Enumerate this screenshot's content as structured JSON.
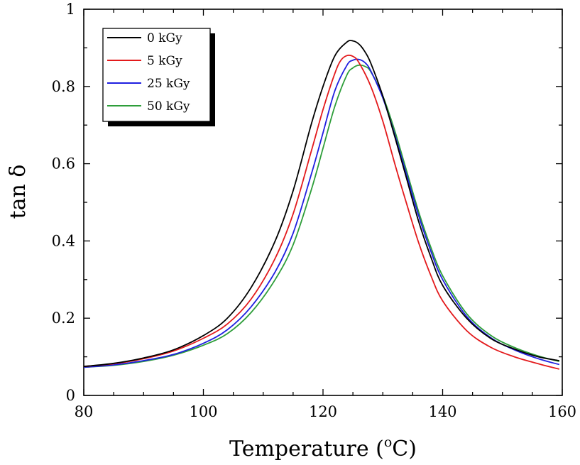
{
  "chart_data": {
    "type": "line",
    "xlabel": "Temperature (",
    "xlabel_sup": "o",
    "xlabel_tail": "C)",
    "ylabel": "tan δ",
    "xlim": [
      80,
      160
    ],
    "ylim": [
      0,
      1
    ],
    "x_ticks": [
      80,
      100,
      120,
      140,
      160
    ],
    "x_tick_labels": [
      "80",
      "100",
      "120",
      "140",
      "160"
    ],
    "y_ticks": [
      0,
      0.2,
      0.4,
      0.6,
      0.8,
      1
    ],
    "y_tick_labels": [
      "0",
      "0.2",
      "0.4",
      "0.6",
      "0.8",
      "1"
    ],
    "grid": false,
    "legend_position": "top-left",
    "series": [
      {
        "name": "0 kGy",
        "color": "#000000",
        "x": [
          80,
          85,
          90,
          95,
          100,
          104,
          108,
          112,
          115,
          118,
          120,
          122,
          124,
          125,
          126,
          127,
          128,
          130,
          132,
          134,
          136,
          138,
          140,
          144,
          148,
          152,
          156,
          159.5
        ],
        "y": [
          0.075,
          0.083,
          0.097,
          0.118,
          0.155,
          0.2,
          0.28,
          0.4,
          0.53,
          0.7,
          0.8,
          0.88,
          0.915,
          0.918,
          0.91,
          0.89,
          0.86,
          0.775,
          0.67,
          0.56,
          0.45,
          0.36,
          0.285,
          0.2,
          0.148,
          0.12,
          0.1,
          0.09
        ]
      },
      {
        "name": "5 kGy",
        "color": "#e31a1c",
        "x": [
          80,
          85,
          90,
          95,
          100,
          104,
          108,
          112,
          115,
          118,
          120,
          122,
          123,
          124,
          125,
          126,
          128,
          130,
          132,
          134,
          136,
          138,
          140,
          144,
          148,
          152,
          156,
          159.5
        ],
        "y": [
          0.075,
          0.082,
          0.095,
          0.115,
          0.148,
          0.185,
          0.25,
          0.355,
          0.47,
          0.63,
          0.74,
          0.835,
          0.868,
          0.88,
          0.878,
          0.862,
          0.8,
          0.71,
          0.6,
          0.495,
          0.395,
          0.312,
          0.245,
          0.168,
          0.125,
          0.1,
          0.082,
          0.068
        ]
      },
      {
        "name": "25 kGy",
        "color": "#1f1fe0",
        "x": [
          80,
          85,
          90,
          95,
          100,
          104,
          108,
          112,
          115,
          118,
          120,
          122,
          124,
          125,
          126,
          127,
          128,
          130,
          132,
          134,
          136,
          138,
          140,
          144,
          148,
          152,
          156,
          159.5
        ],
        "y": [
          0.073,
          0.079,
          0.09,
          0.106,
          0.135,
          0.17,
          0.23,
          0.32,
          0.42,
          0.57,
          0.68,
          0.79,
          0.855,
          0.868,
          0.87,
          0.862,
          0.84,
          0.77,
          0.675,
          0.57,
          0.465,
          0.375,
          0.3,
          0.205,
          0.15,
          0.118,
          0.095,
          0.08
        ]
      },
      {
        "name": "50 kGy",
        "color": "#2e9e3a",
        "x": [
          80,
          85,
          90,
          95,
          100,
          104,
          108,
          112,
          115,
          118,
          120,
          122,
          124,
          125,
          126,
          127,
          128,
          130,
          132,
          134,
          136,
          138,
          140,
          144,
          148,
          152,
          156,
          159.5
        ],
        "y": [
          0.073,
          0.078,
          0.088,
          0.104,
          0.13,
          0.16,
          0.215,
          0.3,
          0.39,
          0.53,
          0.64,
          0.75,
          0.83,
          0.848,
          0.855,
          0.852,
          0.838,
          0.775,
          0.685,
          0.58,
          0.475,
          0.385,
          0.31,
          0.212,
          0.156,
          0.124,
          0.102,
          0.088
        ]
      }
    ]
  }
}
